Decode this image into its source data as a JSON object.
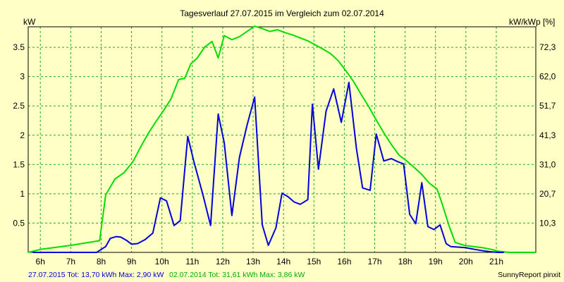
{
  "chart_data": {
    "type": "line",
    "title": "Tagesverlauf 27.07.2015 im Vergleich zum 02.07.2014",
    "ylabel_left": "kW",
    "ylabel_right": "kW/kWp [%]",
    "xlim": [
      5.6,
      22.3
    ],
    "ylim": [
      0,
      3.85
    ],
    "x_ticks": [
      {
        "label": "6h",
        "x": 6
      },
      {
        "label": "7h",
        "x": 7
      },
      {
        "label": "8h",
        "x": 8
      },
      {
        "label": "9h",
        "x": 9
      },
      {
        "label": "10h",
        "x": 10
      },
      {
        "label": "11h",
        "x": 11
      },
      {
        "label": "12h",
        "x": 12
      },
      {
        "label": "13h",
        "x": 13
      },
      {
        "label": "14h",
        "x": 14
      },
      {
        "label": "15h",
        "x": 15
      },
      {
        "label": "16h",
        "x": 16
      },
      {
        "label": "17h",
        "x": 17
      },
      {
        "label": "18h",
        "x": 18
      },
      {
        "label": "19h",
        "x": 19
      },
      {
        "label": "20h",
        "x": 20
      },
      {
        "label": "21h",
        "x": 21
      }
    ],
    "y_ticks_left": [
      {
        "label": "0.5",
        "y": 0.5
      },
      {
        "label": "1",
        "y": 1
      },
      {
        "label": "1.5",
        "y": 1.5
      },
      {
        "label": "2",
        "y": 2
      },
      {
        "label": "2.5",
        "y": 2.5
      },
      {
        "label": "3",
        "y": 3
      },
      {
        "label": "3.5",
        "y": 3.5
      }
    ],
    "y_ticks_right": [
      {
        "label": "10,3",
        "y": 0.5
      },
      {
        "label": "20,7",
        "y": 1
      },
      {
        "label": "31,0",
        "y": 1.5
      },
      {
        "label": "41,3",
        "y": 2
      },
      {
        "label": "51,7",
        "y": 2.5
      },
      {
        "label": "62,0",
        "y": 3
      },
      {
        "label": "72,3",
        "y": 3.5
      }
    ],
    "grid": true,
    "series": [
      {
        "name": "27.07.2015",
        "color": "#0000dd",
        "x": [
          5.75,
          7.5,
          7.85,
          8.0,
          8.15,
          8.3,
          8.5,
          8.65,
          8.85,
          9.0,
          9.2,
          9.45,
          9.7,
          9.95,
          10.15,
          10.4,
          10.6,
          10.85,
          11.05,
          11.35,
          11.6,
          11.85,
          12.05,
          12.3,
          12.55,
          12.8,
          13.05,
          13.3,
          13.5,
          13.75,
          13.95,
          14.15,
          14.35,
          14.55,
          14.8,
          14.95,
          15.15,
          15.4,
          15.65,
          15.9,
          16.15,
          16.4,
          16.6,
          16.85,
          17.05,
          17.3,
          17.55,
          17.75,
          17.95,
          18.15,
          18.35,
          18.55,
          18.75,
          18.95,
          19.15,
          19.35,
          19.5,
          19.75,
          20.0,
          20.3,
          20.65,
          20.85,
          21.05,
          21.25
        ],
        "values": [
          0,
          0,
          0,
          0.05,
          0.1,
          0.24,
          0.27,
          0.26,
          0.2,
          0.14,
          0.15,
          0.22,
          0.33,
          0.93,
          0.88,
          0.46,
          0.54,
          1.98,
          1.55,
          0.98,
          0.46,
          2.36,
          1.87,
          0.63,
          1.62,
          2.17,
          2.65,
          0.47,
          0.12,
          0.42,
          1.01,
          0.95,
          0.86,
          0.82,
          0.9,
          2.53,
          1.42,
          2.41,
          2.79,
          2.22,
          2.9,
          1.77,
          1.1,
          1.06,
          2.02,
          1.56,
          1.6,
          1.55,
          1.51,
          0.65,
          0.49,
          1.19,
          0.44,
          0.39,
          0.47,
          0.15,
          0.1,
          0.09,
          0.08,
          0.05,
          0.02,
          0.01,
          0,
          0
        ]
      },
      {
        "name": "02.07.2014",
        "color": "#00dd00",
        "x": [
          5.6,
          6.0,
          7.0,
          7.95,
          8.15,
          8.45,
          8.75,
          9.05,
          9.3,
          9.55,
          9.8,
          10.05,
          10.3,
          10.55,
          10.75,
          10.95,
          11.15,
          11.4,
          11.65,
          11.85,
          12.05,
          12.3,
          12.55,
          12.8,
          13.05,
          13.3,
          13.55,
          13.8,
          14.05,
          14.3,
          14.55,
          14.8,
          15.05,
          15.3,
          15.55,
          15.8,
          16.05,
          16.3,
          16.55,
          16.8,
          17.05,
          17.3,
          17.55,
          17.8,
          18.05,
          18.3,
          18.55,
          18.8,
          19.05,
          19.2,
          19.45,
          19.65,
          19.95,
          20.25,
          20.55,
          20.85,
          21.05,
          21.25,
          21.45,
          21.65,
          21.85,
          22.05,
          22.3
        ],
        "values": [
          0,
          0.05,
          0.12,
          0.2,
          0.98,
          1.25,
          1.36,
          1.55,
          1.8,
          2.03,
          2.23,
          2.42,
          2.62,
          2.95,
          2.97,
          3.22,
          3.31,
          3.5,
          3.6,
          3.32,
          3.7,
          3.63,
          3.68,
          3.77,
          3.86,
          3.82,
          3.77,
          3.8,
          3.75,
          3.71,
          3.66,
          3.61,
          3.54,
          3.47,
          3.39,
          3.27,
          3.1,
          2.92,
          2.7,
          2.49,
          2.26,
          2.04,
          1.84,
          1.66,
          1.56,
          1.45,
          1.33,
          1.18,
          1.08,
          0.86,
          0.45,
          0.17,
          0.12,
          0.1,
          0.08,
          0.05,
          0.02,
          0.01,
          0,
          0,
          0,
          0,
          0
        ]
      }
    ]
  },
  "footer": {
    "summary_2015": "27.07.2015 Tot: 13,70 kWh Max: 2,90 kW",
    "summary_2014": "02.07.2014 Tot: 31,61 kWh Max: 3,86 kW",
    "credit": "SunnyReport pinxit"
  },
  "colors": {
    "background": "#ffffc6",
    "grid": "#22aa22",
    "series_2015": "#0000dd",
    "series_2014": "#00dd00",
    "text": "#000000"
  }
}
